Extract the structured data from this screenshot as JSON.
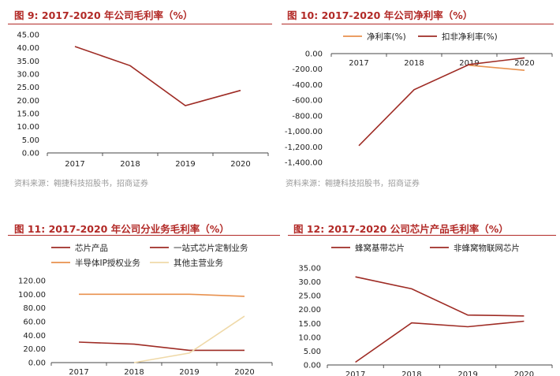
{
  "colors": {
    "accent": "#b22a27",
    "dark_red": "#9e2b24",
    "orange": "#e8914e",
    "tan": "#ddb86f",
    "beige": "#efd9a8"
  },
  "panels": [
    {
      "title": "图 9:  2017-2020 年公司毛利率（%）",
      "source": "资料来源：翱捷科技招股书，招商证券"
    },
    {
      "title": "图 10:  2017-2020 年公司净利率（%）",
      "source": "资料来源：翱捷科技招股书，招商证券"
    },
    {
      "title": "图 11:  2017-2020 年公司分业务毛利率（%）",
      "source": ""
    },
    {
      "title": "图 12:  2017-2020 公司芯片产品毛利率（%）",
      "source": ""
    }
  ],
  "chart_data": [
    {
      "type": "line",
      "title": "图 9:  2017-2020 年公司毛利率（%）",
      "categories": [
        "2017",
        "2018",
        "2019",
        "2020"
      ],
      "series": [
        {
          "values": [
            40.5,
            33.2,
            18.0,
            23.8
          ],
          "color": "#9e2b24"
        }
      ],
      "ylim": [
        0,
        45
      ],
      "yticks": [
        "0.00",
        "5.00",
        "10.00",
        "15.00",
        "20.00",
        "25.00",
        "30.00",
        "35.00",
        "40.00",
        "45.00"
      ],
      "grid": false
    },
    {
      "type": "line",
      "title": "图 10:  2017-2020 年公司净利率（%）",
      "categories": [
        "2017",
        "2018",
        "2019",
        "2020"
      ],
      "series": [
        {
          "name": "净利率(%)",
          "values": [
            null,
            null,
            -150,
            -215
          ],
          "color": "#e8914e"
        },
        {
          "name": "扣非净利率(%)",
          "values": [
            -1185,
            -465,
            -140,
            -55
          ],
          "color": "#9e2b24"
        }
      ],
      "ylim": [
        -1400,
        0
      ],
      "yticks": [
        "0.00",
        "-200.00",
        "-400.00",
        "-600.00",
        "-800.00",
        "-1,000.00",
        "-1,200.00",
        "-1,400.00"
      ],
      "legend": "top",
      "xaxis_at_top": true,
      "grid": false
    },
    {
      "type": "line",
      "title": "图 11:  2017-2020 年公司分业务毛利率（%）",
      "categories": [
        "2017",
        "2018",
        "2019",
        "2020"
      ],
      "series": [
        {
          "name": "芯片产品",
          "values": [
            30,
            27,
            18,
            18
          ],
          "color": "#9e2b24"
        },
        {
          "name": "一站式芯片定制业务",
          "values": [
            null,
            null,
            null,
            null
          ],
          "color": "#9e2b24"
        },
        {
          "name": "半导体IP授权业务",
          "values": [
            100,
            100,
            100,
            97
          ],
          "color": "#e8914e"
        },
        {
          "name": "其他主营业务",
          "values": [
            null,
            0,
            14,
            68
          ],
          "color": "#efd9a8"
        }
      ],
      "ylim": [
        0,
        120
      ],
      "yticks": [
        "0.00",
        "20.00",
        "40.00",
        "60.00",
        "80.00",
        "100.00",
        "120.00"
      ],
      "legend": "top",
      "grid": false
    },
    {
      "type": "line",
      "title": "图 12:  2017-2020 公司芯片产品毛利率（%）",
      "categories": [
        "2017",
        "2018",
        "2019",
        "2020"
      ],
      "series": [
        {
          "name": "蜂窝基带芯片",
          "values": [
            31.8,
            27.5,
            18.0,
            17.7
          ],
          "color": "#9e2b24"
        },
        {
          "name": "非蜂窝物联网芯片",
          "values": [
            1.0,
            15.2,
            13.8,
            15.8
          ],
          "color": "#9e2b24"
        }
      ],
      "ylim": [
        0,
        35
      ],
      "yticks": [
        "0.00",
        "5.00",
        "10.00",
        "15.00",
        "20.00",
        "25.00",
        "30.00",
        "35.00"
      ],
      "legend": "top",
      "grid": false
    }
  ]
}
